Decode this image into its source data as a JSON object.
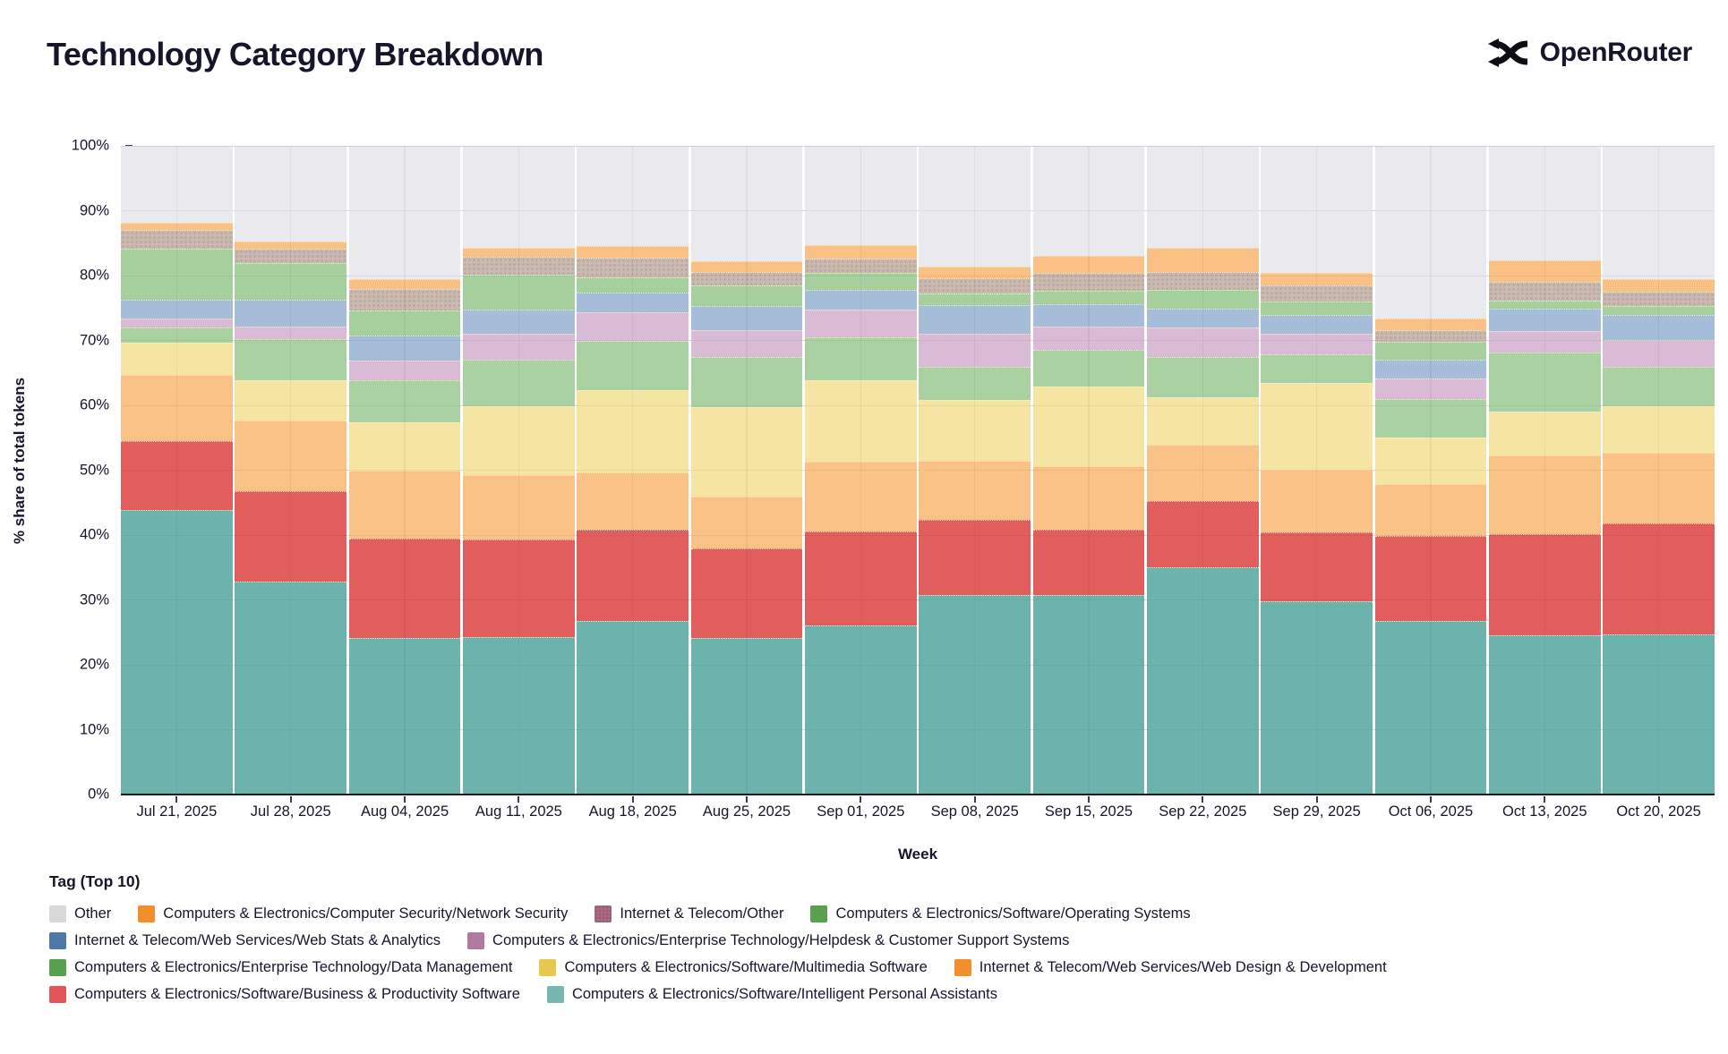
{
  "header": {
    "title": "Technology Category Breakdown",
    "brand": "OpenRouter"
  },
  "axes": {
    "y_title": "% share of total tokens",
    "x_title": "Week",
    "y_ticks": [
      "0%",
      "10%",
      "20%",
      "30%",
      "40%",
      "50%",
      "60%",
      "70%",
      "80%",
      "90%",
      "100%"
    ]
  },
  "legend": {
    "title": "Tag (Top 10)",
    "rows": [
      [
        "other",
        "network_security",
        "internet_telecom_other",
        "operating_systems"
      ],
      [
        "web_stats_analytics",
        "helpdesk_support"
      ],
      [
        "data_management",
        "multimedia_software",
        "web_design_dev"
      ],
      [
        "business_productivity",
        "personal_assistants"
      ]
    ]
  },
  "chart_data": {
    "type": "bar",
    "stacked": true,
    "title": "Technology Category Breakdown",
    "xlabel": "Week",
    "ylabel": "% share of total tokens",
    "ylim": [
      0,
      100
    ],
    "grid": true,
    "legend_position": "bottom",
    "categories": [
      "Jul 21, 2025",
      "Jul 28, 2025",
      "Aug 04, 2025",
      "Aug 11, 2025",
      "Aug 18, 2025",
      "Aug 25, 2025",
      "Sep 01, 2025",
      "Sep 08, 2025",
      "Sep 15, 2025",
      "Sep 22, 2025",
      "Sep 29, 2025",
      "Oct 06, 2025",
      "Oct 13, 2025",
      "Oct 20, 2025"
    ],
    "series": [
      {
        "key": "personal_assistants",
        "name": "Computers & Electronics/Software/Intelligent Personal Assistants",
        "bar_color": "#6db3ad",
        "legend_color": "#76b7b2",
        "pattern": "none",
        "values": [
          43.9,
          32.8,
          24.2,
          24.3,
          26.8,
          24.2,
          26.1,
          30.8,
          30.7,
          35.0,
          29.8,
          26.7,
          24.6,
          24.7
        ]
      },
      {
        "key": "business_productivity",
        "name": "Computers & Electronics/Software/Business & Productivity Software",
        "bar_color": "#e25e5c",
        "legend_color": "#e15759",
        "pattern": "none",
        "values": [
          10.6,
          14.0,
          15.2,
          15.0,
          14.0,
          13.7,
          14.5,
          11.6,
          10.1,
          10.3,
          10.6,
          13.1,
          15.5,
          17.1
        ]
      },
      {
        "key": "web_design_dev",
        "name": "Internet & Telecom/Web Services/Web Design & Development",
        "bar_color": "#fac286",
        "legend_color": "#f28e2b",
        "pattern": "none",
        "values": [
          10.2,
          10.8,
          10.5,
          9.9,
          8.9,
          8.1,
          10.7,
          9.0,
          9.8,
          8.6,
          9.7,
          8.0,
          12.2,
          10.9
        ]
      },
      {
        "key": "multimedia_software",
        "name": "Computers & Electronics/Software/Multimedia Software",
        "bar_color": "#f6e4a2",
        "legend_color": "#e8c84d",
        "pattern": "none",
        "values": [
          4.9,
          6.2,
          7.5,
          10.6,
          12.7,
          13.7,
          12.5,
          9.4,
          12.3,
          7.4,
          13.4,
          7.2,
          6.7,
          7.2
        ]
      },
      {
        "key": "data_management",
        "name": "Computers & Electronics/Enterprise Technology/Data Management",
        "bar_color": "#a9d1a1",
        "legend_color": "#59a14f",
        "pattern": "none",
        "values": [
          2.4,
          6.4,
          6.5,
          7.3,
          7.6,
          7.7,
          6.7,
          5.1,
          5.6,
          6.1,
          4.3,
          6.0,
          9.2,
          6.0
        ]
      },
      {
        "key": "helpdesk_support",
        "name": "Computers & Electronics/Enterprise Technology/Helpdesk & Customer Support Systems",
        "bar_color": "#d9bbd5",
        "legend_color": "#b07aa1",
        "pattern": "sparse",
        "values": [
          1.4,
          2.0,
          3.0,
          4.0,
          4.3,
          4.2,
          4.2,
          5.2,
          3.6,
          4.6,
          3.3,
          3.1,
          3.3,
          4.2
        ]
      },
      {
        "key": "web_stats_analytics",
        "name": "Internet & Telecom/Web Services/Web Stats & Analytics",
        "bar_color": "#a5bdd9",
        "legend_color": "#4e79a7",
        "pattern": "none",
        "values": [
          2.9,
          4.1,
          3.9,
          3.6,
          3.1,
          3.7,
          3.1,
          4.3,
          3.5,
          2.9,
          2.8,
          2.9,
          3.4,
          3.8
        ]
      },
      {
        "key": "operating_systems",
        "name": "Computers & Electronics/Software/Operating Systems",
        "bar_color": "#a6cf9e",
        "legend_color": "#59a14f",
        "pattern": "none",
        "values": [
          7.8,
          5.6,
          3.8,
          5.4,
          2.4,
          3.2,
          2.6,
          1.8,
          2.1,
          2.9,
          2.1,
          2.8,
          1.3,
          1.4
        ]
      },
      {
        "key": "internet_telecom_other",
        "name": "Internet & Telecom/Other",
        "bar_color": "#ccb9ae",
        "legend_color": "#e15759",
        "pattern": "dots",
        "values": [
          2.9,
          2.2,
          3.3,
          2.8,
          3.0,
          2.0,
          2.2,
          2.4,
          2.7,
          2.7,
          2.5,
          1.8,
          2.9,
          2.2
        ]
      },
      {
        "key": "network_security",
        "name": "Computers & Electronics/Computer Security/Network Security",
        "bar_color": "#fbc083",
        "legend_color": "#f28e2b",
        "pattern": "none",
        "values": [
          1.1,
          1.1,
          1.6,
          1.4,
          1.8,
          1.7,
          2.1,
          1.8,
          2.6,
          3.8,
          1.9,
          1.8,
          3.2,
          2.0
        ]
      },
      {
        "key": "other",
        "name": "Other",
        "bar_color": "#e9e9ee",
        "legend_color": "#d9d9d9",
        "pattern": "none",
        "values": [
          11.9,
          14.8,
          20.5,
          15.7,
          15.4,
          17.8,
          15.3,
          18.6,
          17.0,
          15.7,
          19.6,
          26.6,
          17.7,
          20.5
        ]
      }
    ]
  }
}
